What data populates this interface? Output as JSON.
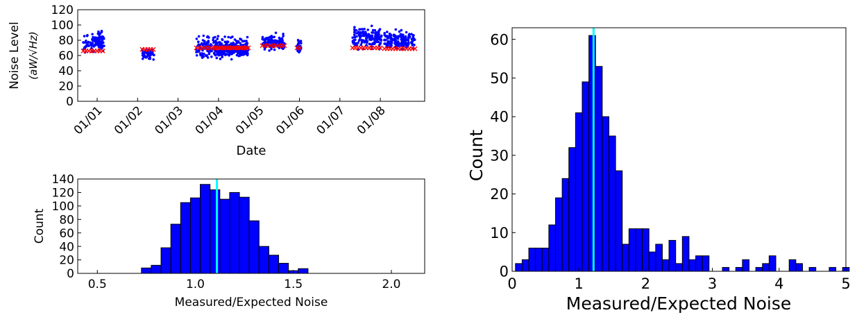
{
  "chart_data": [
    {
      "type": "scatter",
      "xlabel": "Date",
      "ylabel": "Noise Level",
      "ylabel_unit": "(aW/√Hz)",
      "x_ticks": [
        "01/01",
        "01/02",
        "01/03",
        "01/04",
        "01/05",
        "01/06",
        "01/07",
        "01/08"
      ],
      "y_ticks": [
        "0",
        "20",
        "40",
        "60",
        "80",
        "100",
        "120"
      ],
      "ylim": [
        0,
        120
      ],
      "grid": false,
      "series": [
        {
          "marker": "dot",
          "color": "#0000ff",
          "clusters": [
            {
              "x_from": "12/31",
              "x_to": "01/01",
              "y_min": 62,
              "y_max": 98,
              "y_center": 78
            },
            {
              "x_from": "01/02",
              "x_to": "01/02",
              "y_min": 52,
              "y_max": 72,
              "y_center": 62
            },
            {
              "x_from": "01/03",
              "x_to": "01/04",
              "y_min": 55,
              "y_max": 96,
              "y_center": 70
            },
            {
              "x_from": "01/04",
              "x_to": "01/05",
              "y_min": 56,
              "y_max": 78,
              "y_center": 67
            },
            {
              "x_from": "01/05",
              "x_to": "01/06",
              "y_min": 62,
              "y_max": 93,
              "y_center": 77
            },
            {
              "x_from": "01/06",
              "x_to": "01/06",
              "y_min": 64,
              "y_max": 90,
              "y_center": 72
            },
            {
              "x_from": "01/07",
              "x_to": "01/08",
              "y_min": 66,
              "y_max": 108,
              "y_center": 84
            },
            {
              "x_from": "01/08",
              "x_to": "01/09",
              "y_min": 64,
              "y_max": 100,
              "y_center": 80
            }
          ]
        },
        {
          "marker": "x",
          "color": "#ff0000",
          "segments": [
            {
              "x_from": "12/31",
              "x_to": "01/01",
              "y": 66
            },
            {
              "x_from": "01/02",
              "x_to": "01/02",
              "y": 68
            },
            {
              "x_from": "01/03",
              "x_to": "01/04",
              "y": 70
            },
            {
              "x_from": "01/04",
              "x_to": "01/05",
              "y": 70
            },
            {
              "x_from": "01/05",
              "x_to": "01/06",
              "y": 73
            },
            {
              "x_from": "01/06",
              "x_to": "01/06",
              "y": 70
            },
            {
              "x_from": "01/07",
              "x_to": "01/08",
              "y": 70
            },
            {
              "x_from": "01/08",
              "x_to": "01/09",
              "y": 69
            }
          ]
        }
      ]
    },
    {
      "type": "bar",
      "xlabel": "Measured/Expected Noise",
      "ylabel": "Count",
      "xlim": [
        0.4,
        2.17
      ],
      "ylim": [
        0,
        140
      ],
      "x_ticks": [
        "0.5",
        "1.0",
        "1.5",
        "2.0"
      ],
      "y_ticks": [
        "0",
        "20",
        "40",
        "60",
        "80",
        "100",
        "120",
        "140"
      ],
      "bin_width": 0.05,
      "bins": [
        {
          "x": 0.75,
          "value": 8
        },
        {
          "x": 0.8,
          "value": 12
        },
        {
          "x": 0.85,
          "value": 38
        },
        {
          "x": 0.9,
          "value": 73
        },
        {
          "x": 0.95,
          "value": 105
        },
        {
          "x": 1.0,
          "value": 112
        },
        {
          "x": 1.05,
          "value": 132
        },
        {
          "x": 1.1,
          "value": 124
        },
        {
          "x": 1.15,
          "value": 110
        },
        {
          "x": 1.2,
          "value": 120
        },
        {
          "x": 1.25,
          "value": 113
        },
        {
          "x": 1.3,
          "value": 78
        },
        {
          "x": 1.35,
          "value": 40
        },
        {
          "x": 1.4,
          "value": 27
        },
        {
          "x": 1.45,
          "value": 15
        },
        {
          "x": 1.5,
          "value": 4
        },
        {
          "x": 1.55,
          "value": 7
        }
      ],
      "marker_line": {
        "x": 1.11,
        "color": "#00ffff"
      },
      "bar_color": "#0000ff"
    },
    {
      "type": "bar",
      "xlabel": "Measured/Expected Noise",
      "ylabel": "Count",
      "xlim": [
        0,
        5
      ],
      "ylim": [
        0,
        63
      ],
      "x_ticks": [
        "0",
        "1",
        "2",
        "3",
        "4",
        "5"
      ],
      "y_ticks": [
        "0",
        "10",
        "20",
        "30",
        "40",
        "50",
        "60"
      ],
      "bin_width": 0.1,
      "bins": [
        {
          "x": 0.1,
          "value": 2
        },
        {
          "x": 0.2,
          "value": 3
        },
        {
          "x": 0.3,
          "value": 6
        },
        {
          "x": 0.4,
          "value": 6
        },
        {
          "x": 0.5,
          "value": 6
        },
        {
          "x": 0.6,
          "value": 12
        },
        {
          "x": 0.7,
          "value": 19
        },
        {
          "x": 0.8,
          "value": 24
        },
        {
          "x": 0.9,
          "value": 32
        },
        {
          "x": 1.0,
          "value": 41
        },
        {
          "x": 1.1,
          "value": 49
        },
        {
          "x": 1.2,
          "value": 61
        },
        {
          "x": 1.3,
          "value": 53
        },
        {
          "x": 1.4,
          "value": 40
        },
        {
          "x": 1.5,
          "value": 35
        },
        {
          "x": 1.6,
          "value": 26
        },
        {
          "x": 1.7,
          "value": 7
        },
        {
          "x": 1.8,
          "value": 11
        },
        {
          "x": 1.9,
          "value": 11
        },
        {
          "x": 2.0,
          "value": 11
        },
        {
          "x": 2.1,
          "value": 5
        },
        {
          "x": 2.2,
          "value": 7
        },
        {
          "x": 2.3,
          "value": 3
        },
        {
          "x": 2.4,
          "value": 8
        },
        {
          "x": 2.5,
          "value": 2
        },
        {
          "x": 2.6,
          "value": 9
        },
        {
          "x": 2.7,
          "value": 3
        },
        {
          "x": 2.8,
          "value": 4
        },
        {
          "x": 2.9,
          "value": 4
        },
        {
          "x": 3.0,
          "value": 0
        },
        {
          "x": 3.1,
          "value": 0
        },
        {
          "x": 3.2,
          "value": 1
        },
        {
          "x": 3.3,
          "value": 0
        },
        {
          "x": 3.4,
          "value": 1
        },
        {
          "x": 3.5,
          "value": 3
        },
        {
          "x": 3.6,
          "value": 0
        },
        {
          "x": 3.7,
          "value": 1
        },
        {
          "x": 3.8,
          "value": 2
        },
        {
          "x": 3.9,
          "value": 4
        },
        {
          "x": 4.0,
          "value": 0
        },
        {
          "x": 4.1,
          "value": 0
        },
        {
          "x": 4.2,
          "value": 3
        },
        {
          "x": 4.3,
          "value": 2
        },
        {
          "x": 4.4,
          "value": 0
        },
        {
          "x": 4.5,
          "value": 1
        },
        {
          "x": 4.6,
          "value": 0
        },
        {
          "x": 4.7,
          "value": 0
        },
        {
          "x": 4.8,
          "value": 1
        },
        {
          "x": 4.9,
          "value": 0
        },
        {
          "x": 5.0,
          "value": 1
        }
      ],
      "marker_line": {
        "x": 1.22,
        "color": "#00ffff"
      },
      "bar_color": "#0000ff"
    }
  ]
}
